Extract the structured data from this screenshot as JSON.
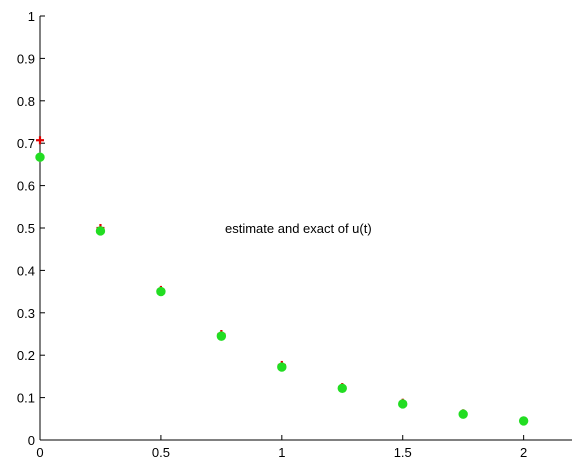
{
  "chart_data": {
    "type": "scatter",
    "title": "",
    "xlabel": "",
    "ylabel": "",
    "xlim": [
      0,
      2.2
    ],
    "ylim": [
      0,
      1
    ],
    "x_ticks": [
      0,
      0.5,
      1,
      1.5,
      2
    ],
    "x_tick_labels": [
      "0",
      "0.5",
      "1",
      "1.5",
      "2"
    ],
    "y_ticks": [
      0,
      0.1,
      0.2,
      0.3,
      0.4,
      0.5,
      0.6,
      0.7,
      0.8,
      0.9,
      1
    ],
    "y_tick_labels": [
      "0",
      "0.1",
      "0.2",
      "0.3",
      "0.4",
      "0.5",
      "0.6",
      "0.7",
      "0.8",
      "0.9",
      "1"
    ],
    "grid": false,
    "annotation": "estimate and exact of u(t)",
    "series": [
      {
        "marker": "+",
        "color": "#e00000",
        "x": [
          0,
          0.25,
          0.5,
          0.75,
          1,
          1.25,
          1.5,
          1.75,
          2
        ],
        "y": [
          0.707,
          0.5,
          0.354,
          0.25,
          0.177,
          0.125,
          0.088,
          0.063,
          0.044
        ]
      },
      {
        "marker": "o",
        "color": "#22dd22",
        "x": [
          0,
          0.25,
          0.5,
          0.75,
          1,
          1.25,
          1.5,
          1.75,
          2
        ],
        "y": [
          0.667,
          0.493,
          0.35,
          0.245,
          0.172,
          0.122,
          0.085,
          0.061,
          0.045
        ]
      }
    ]
  }
}
